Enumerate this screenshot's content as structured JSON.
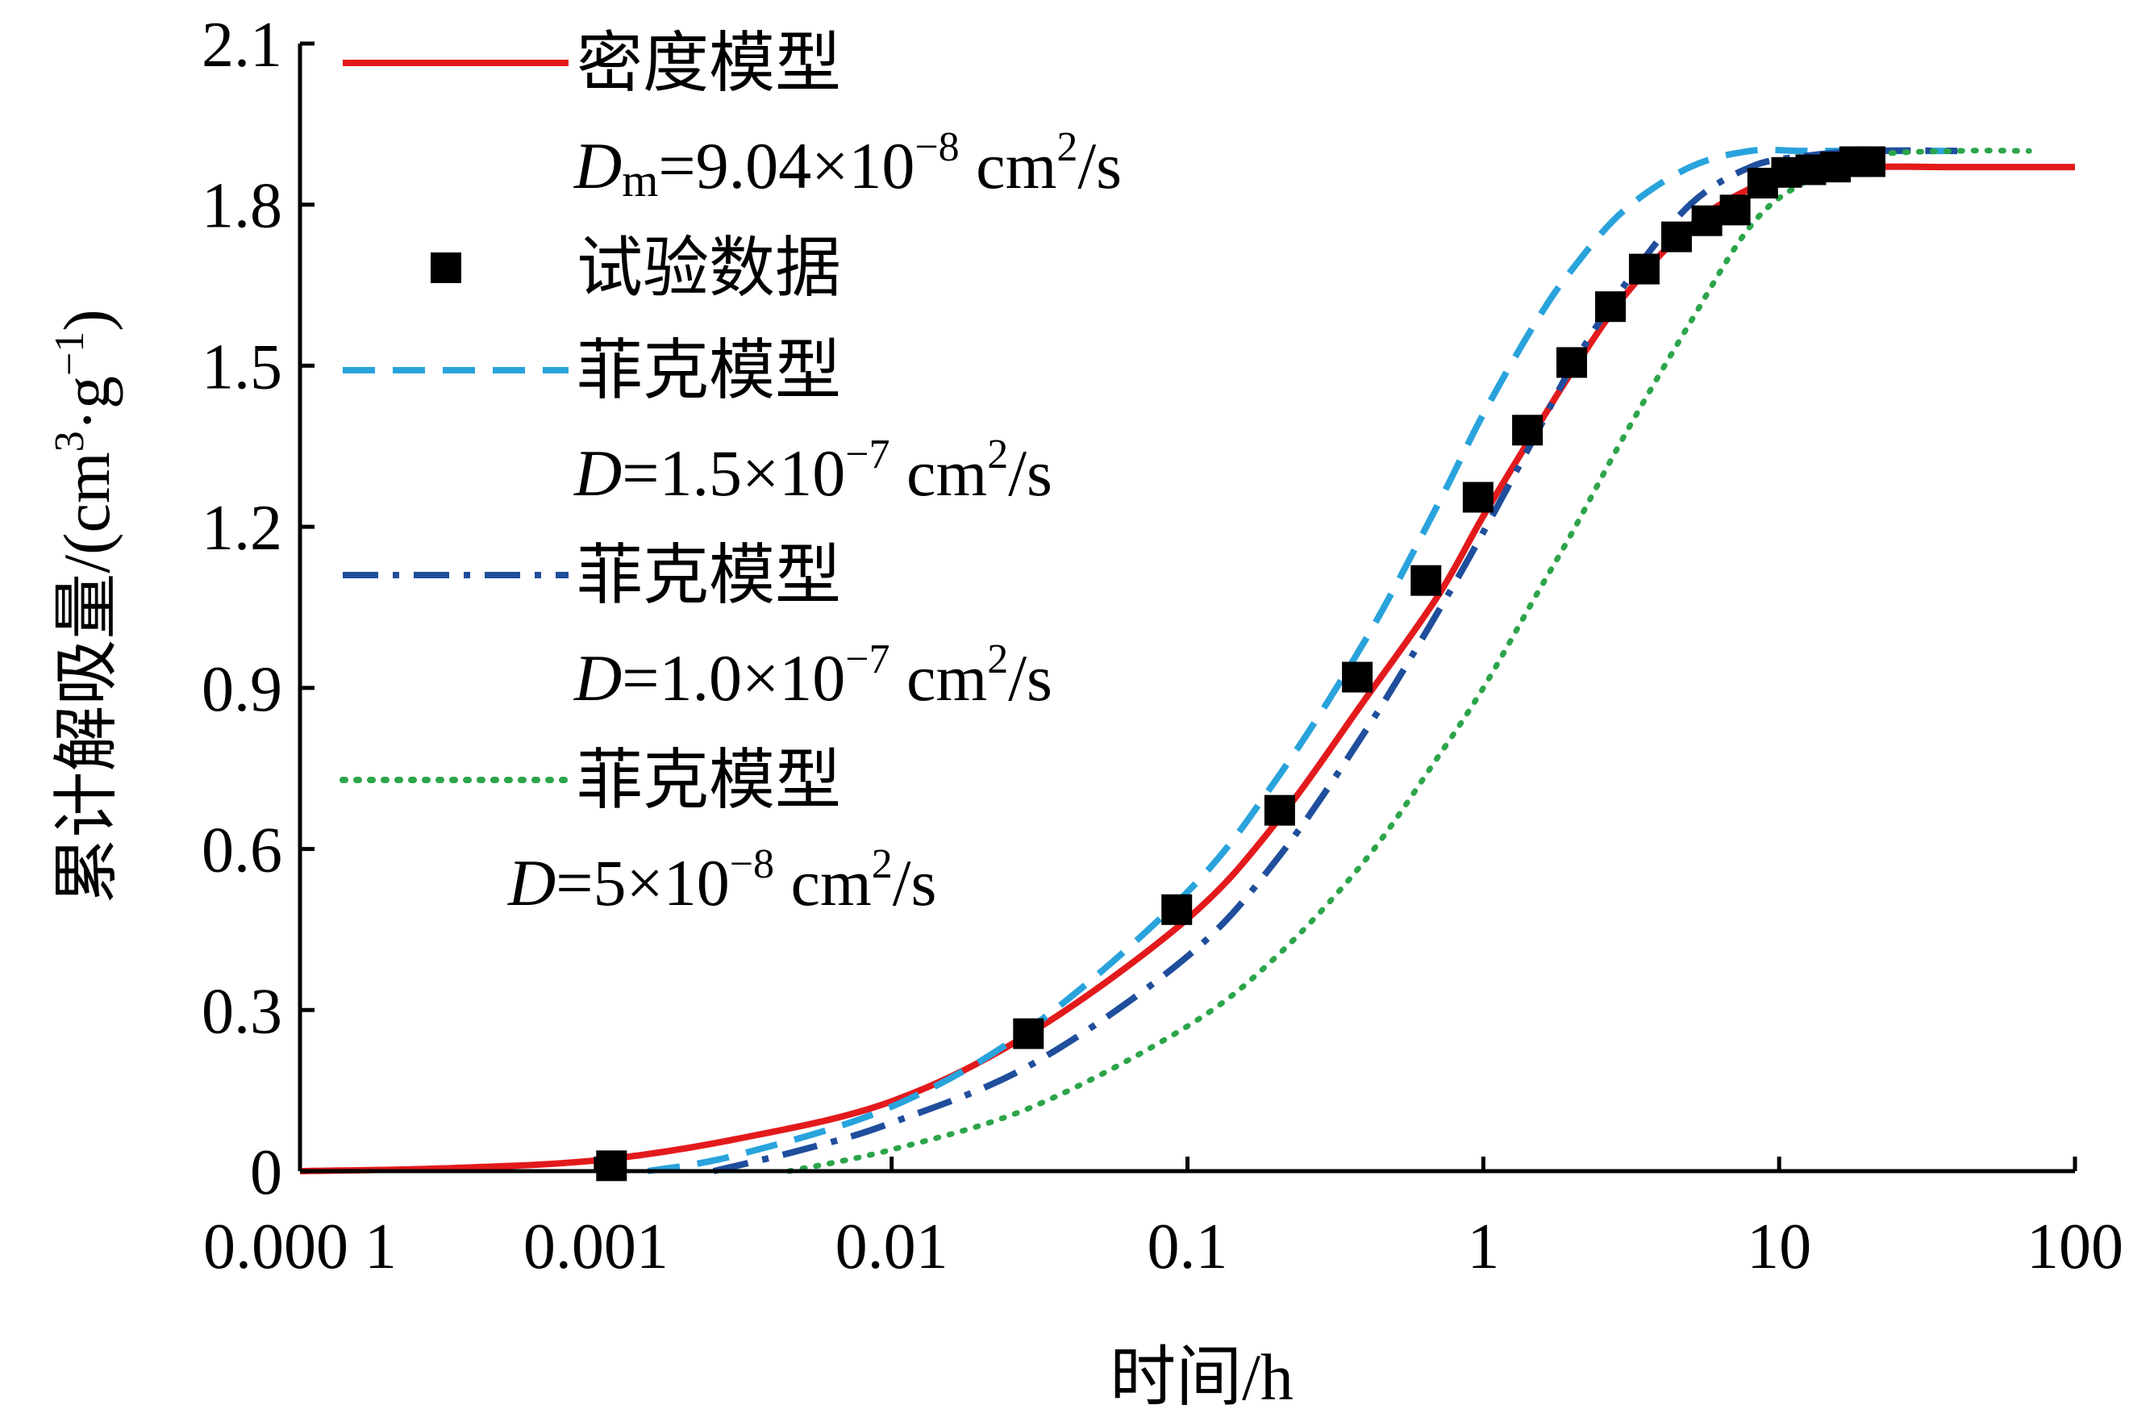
{
  "chart_data": {
    "type": "line",
    "title": "",
    "xlabel": "时间/h",
    "ylabel": "累计解吸量/(cm3·g-1)",
    "ylabel_parts": {
      "main": "累计解吸量/(cm",
      "sup1": "3",
      "mid": "·g",
      "sup2": "−1",
      "end": ")"
    },
    "xscale": "log",
    "xlim": [
      0.0001,
      100
    ],
    "ylim": [
      0,
      2.1
    ],
    "xticks": [
      0.0001,
      0.001,
      0.01,
      0.1,
      1,
      10,
      100
    ],
    "xtick_labels": [
      "0.000 1",
      "0.001",
      "0.01",
      "0.1",
      "1",
      "10",
      "100"
    ],
    "yticks": [
      0,
      0.3,
      0.6,
      0.9,
      1.2,
      1.5,
      1.8,
      2.1
    ],
    "ytick_labels": [
      "0",
      "0.3",
      "0.6",
      "0.9",
      "1.2",
      "1.5",
      "1.8",
      "2.1"
    ],
    "grid": false,
    "legend_position": "top-left",
    "series": [
      {
        "name": "密度模型",
        "param_label": "Dm=9.04×10⁻⁸ cm²/s",
        "param": {
          "symbol": "D",
          "sub": "m",
          "value": "=9.04×10",
          "exp": "−8",
          "unit": " cm",
          "unit_sup": "2",
          "unit_end": "/s"
        },
        "style": "solid",
        "color": "#e31a1c",
        "model": "density",
        "D": 9.04e-08,
        "saturation": 1.87,
        "t_range": [
          0.0001,
          100
        ],
        "x": [
          0.0001,
          0.0003,
          0.001,
          0.003,
          0.01,
          0.03,
          0.1,
          0.2,
          0.4,
          0.7,
          1,
          1.5,
          2,
          3,
          5,
          8,
          12,
          20,
          40,
          100
        ],
        "y": [
          0,
          0.005,
          0.02,
          0.06,
          0.13,
          0.26,
          0.47,
          0.65,
          0.88,
          1.07,
          1.22,
          1.38,
          1.49,
          1.63,
          1.76,
          1.83,
          1.86,
          1.87,
          1.87,
          1.87
        ]
      },
      {
        "name": "试验数据",
        "style": "marker",
        "marker": "square",
        "color": "#000000",
        "x": [
          0.00113,
          0.029,
          0.092,
          0.205,
          0.375,
          0.64,
          0.96,
          1.41,
          1.99,
          2.69,
          3.5,
          4.5,
          5.7,
          7.1,
          8.8,
          10.6,
          12.8,
          15.5,
          18,
          20.3
        ],
        "y": [
          0.01,
          0.256,
          0.487,
          0.672,
          0.92,
          1.1,
          1.255,
          1.38,
          1.506,
          1.61,
          1.68,
          1.74,
          1.77,
          1.79,
          1.84,
          1.86,
          1.865,
          1.87,
          1.88,
          1.88
        ]
      },
      {
        "name": "菲克模型",
        "param_label": "D=1.5×10⁻⁷ cm²/s",
        "param": {
          "symbol": "D",
          "sub": "",
          "value": "=1.5×10",
          "exp": "−7",
          "unit": " cm",
          "unit_sup": "2",
          "unit_end": "/s"
        },
        "style": "dashed",
        "color": "#29a3dc",
        "D": 1.5e-07,
        "saturation": 1.9,
        "t_range": [
          0.0015,
          40
        ],
        "x": [
          0.0015,
          0.003,
          0.01,
          0.03,
          0.1,
          0.2,
          0.4,
          0.7,
          1,
          1.5,
          2,
          3,
          5,
          8,
          12,
          20,
          40
        ],
        "y": [
          0,
          0.03,
          0.12,
          0.27,
          0.52,
          0.73,
          0.99,
          1.24,
          1.41,
          1.58,
          1.68,
          1.79,
          1.87,
          1.9,
          1.9,
          1.9,
          1.9
        ]
      },
      {
        "name": "菲克模型",
        "param_label": "D=1.0×10⁻⁷ cm²/s",
        "param": {
          "symbol": "D",
          "sub": "",
          "value": "=1.0×10",
          "exp": "−7",
          "unit": " cm",
          "unit_sup": "2",
          "unit_end": "/s"
        },
        "style": "dashdot",
        "color": "#1f4e9c",
        "D": 1e-07,
        "saturation": 1.9,
        "t_range": [
          0.0025,
          40
        ],
        "x": [
          0.0025,
          0.005,
          0.01,
          0.03,
          0.1,
          0.2,
          0.4,
          0.7,
          1,
          1.5,
          2,
          3,
          5,
          8,
          12,
          20,
          40
        ],
        "y": [
          0,
          0.04,
          0.09,
          0.2,
          0.4,
          0.58,
          0.82,
          1.04,
          1.19,
          1.37,
          1.5,
          1.65,
          1.8,
          1.87,
          1.89,
          1.9,
          1.9
        ]
      },
      {
        "name": "菲克模型",
        "param_label": "D=5×10⁻⁸ cm²/s",
        "param": {
          "symbol": "D",
          "sub": "",
          "value": "=5×10",
          "exp": "−8",
          "unit": " cm",
          "unit_sup": "2",
          "unit_end": "/s"
        },
        "style": "dotted",
        "color": "#2ca54a",
        "D": 5e-08,
        "saturation": 1.9,
        "t_range": [
          0.0045,
          70
        ],
        "x": [
          0.0045,
          0.01,
          0.03,
          0.1,
          0.2,
          0.4,
          0.7,
          1,
          1.5,
          2,
          3,
          5,
          8,
          12,
          20,
          40,
          70
        ],
        "y": [
          0,
          0.04,
          0.12,
          0.27,
          0.4,
          0.58,
          0.77,
          0.9,
          1.07,
          1.19,
          1.37,
          1.58,
          1.76,
          1.84,
          1.89,
          1.9,
          1.9
        ]
      }
    ]
  }
}
